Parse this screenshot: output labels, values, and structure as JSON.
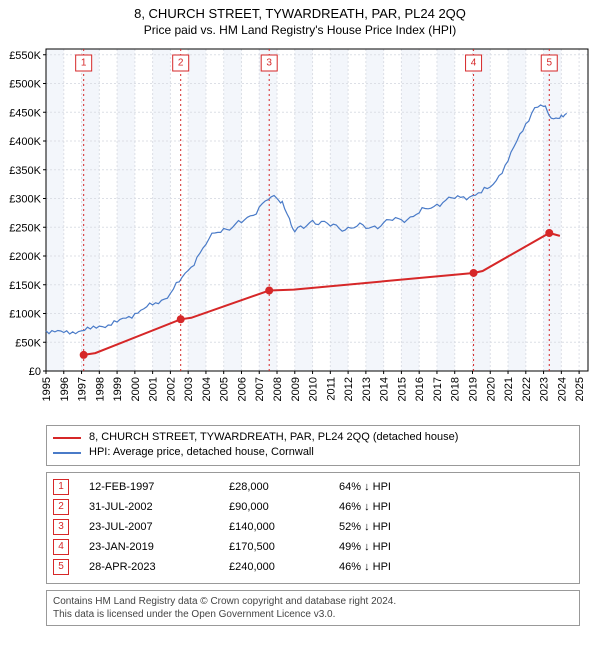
{
  "title_line1": "8, CHURCH STREET, TYWARDREATH, PAR, PL24 2QQ",
  "title_line2": "Price paid vs. HM Land Registry's House Price Index (HPI)",
  "chart": {
    "type": "line",
    "background_color": "#ffffff",
    "plot_bg_even": "#ffffff",
    "plot_bg_odd": "#f3f6fb",
    "grid_color": "#dcdfe6",
    "grid_dash": "2,2",
    "axis_color": "#000000",
    "x_years": [
      1995,
      1996,
      1997,
      1998,
      1999,
      2000,
      2001,
      2002,
      2003,
      2004,
      2005,
      2006,
      2007,
      2008,
      2009,
      2010,
      2011,
      2012,
      2013,
      2014,
      2015,
      2016,
      2017,
      2018,
      2019,
      2020,
      2021,
      2022,
      2023,
      2024,
      2025
    ],
    "y_ticks": [
      0,
      50000,
      100000,
      150000,
      200000,
      250000,
      300000,
      350000,
      400000,
      450000,
      500000,
      550000
    ],
    "y_tick_labels": [
      "£0",
      "£50K",
      "£100K",
      "£150K",
      "£200K",
      "£250K",
      "£300K",
      "£350K",
      "£400K",
      "£450K",
      "£500K",
      "£550K"
    ],
    "ylim": [
      0,
      560000
    ],
    "xlim": [
      1995,
      2025.5
    ],
    "tick_fontsize": 11,
    "hpi_series": {
      "color": "#4a7bc8",
      "width": 1.2,
      "points": [
        [
          1995.0,
          70000
        ],
        [
          1995.5,
          68000
        ],
        [
          1996.0,
          67000
        ],
        [
          1996.5,
          68000
        ],
        [
          1997.0,
          70000
        ],
        [
          1997.5,
          73000
        ],
        [
          1998.0,
          78000
        ],
        [
          1998.5,
          80000
        ],
        [
          1999.0,
          85000
        ],
        [
          1999.5,
          92000
        ],
        [
          2000.0,
          100000
        ],
        [
          2000.5,
          108000
        ],
        [
          2001.0,
          115000
        ],
        [
          2001.5,
          123000
        ],
        [
          2002.0,
          135000
        ],
        [
          2002.5,
          155000
        ],
        [
          2003.0,
          175000
        ],
        [
          2003.5,
          198000
        ],
        [
          2004.0,
          220000
        ],
        [
          2004.5,
          240000
        ],
        [
          2005.0,
          248000
        ],
        [
          2005.5,
          250000
        ],
        [
          2006.0,
          258000
        ],
        [
          2006.5,
          270000
        ],
        [
          2007.0,
          285000
        ],
        [
          2007.5,
          298000
        ],
        [
          2008.0,
          300000
        ],
        [
          2008.3,
          295000
        ],
        [
          2008.7,
          265000
        ],
        [
          2009.0,
          242000
        ],
        [
          2009.5,
          248000
        ],
        [
          2010.0,
          262000
        ],
        [
          2010.5,
          260000
        ],
        [
          2011.0,
          252000
        ],
        [
          2011.5,
          248000
        ],
        [
          2012.0,
          250000
        ],
        [
          2012.5,
          252000
        ],
        [
          2013.0,
          248000
        ],
        [
          2013.5,
          252000
        ],
        [
          2014.0,
          258000
        ],
        [
          2014.5,
          262000
        ],
        [
          2015.0,
          263000
        ],
        [
          2015.5,
          268000
        ],
        [
          2016.0,
          275000
        ],
        [
          2016.5,
          282000
        ],
        [
          2017.0,
          290000
        ],
        [
          2017.5,
          297000
        ],
        [
          2018.0,
          300000
        ],
        [
          2018.5,
          303000
        ],
        [
          2019.0,
          305000
        ],
        [
          2019.5,
          310000
        ],
        [
          2020.0,
          320000
        ],
        [
          2020.5,
          340000
        ],
        [
          2021.0,
          365000
        ],
        [
          2021.5,
          400000
        ],
        [
          2022.0,
          430000
        ],
        [
          2022.5,
          458000
        ],
        [
          2023.0,
          460000
        ],
        [
          2023.3,
          445000
        ],
        [
          2023.7,
          440000
        ],
        [
          2024.0,
          445000
        ],
        [
          2024.3,
          448000
        ]
      ]
    },
    "house_series": {
      "color": "#d62728",
      "width": 2,
      "points": [
        [
          1997.12,
          28000
        ],
        [
          2002.58,
          90000
        ],
        [
          2007.56,
          140000
        ],
        [
          2019.06,
          170500
        ],
        [
          2023.32,
          240000
        ]
      ]
    },
    "sale_markers": {
      "color": "#d62728",
      "box_border": "#d62728",
      "box_bg": "#ffffff",
      "dash_color": "#d62728",
      "dash": "2,3",
      "points": [
        {
          "n": "1",
          "year": 1997.12,
          "price": 28000
        },
        {
          "n": "2",
          "year": 2002.58,
          "price": 90000
        },
        {
          "n": "3",
          "year": 2007.56,
          "price": 140000
        },
        {
          "n": "4",
          "year": 2019.06,
          "price": 170500
        },
        {
          "n": "5",
          "year": 2023.32,
          "price": 240000
        }
      ]
    }
  },
  "legend": {
    "series1_color": "#d62728",
    "series1_label": "8, CHURCH STREET, TYWARDREATH, PAR, PL24 2QQ (detached house)",
    "series2_color": "#4a7bc8",
    "series2_label": "HPI: Average price, detached house, Cornwall"
  },
  "table": {
    "marker_border": "#d62728",
    "marker_text": "#d62728",
    "rows": [
      {
        "n": "1",
        "date": "12-FEB-1997",
        "price": "£28,000",
        "delta": "64% ↓ HPI"
      },
      {
        "n": "2",
        "date": "31-JUL-2002",
        "price": "£90,000",
        "delta": "46% ↓ HPI"
      },
      {
        "n": "3",
        "date": "23-JUL-2007",
        "price": "£140,000",
        "delta": "52% ↓ HPI"
      },
      {
        "n": "4",
        "date": "23-JAN-2019",
        "price": "£170,500",
        "delta": "49% ↓ HPI"
      },
      {
        "n": "5",
        "date": "28-APR-2023",
        "price": "£240,000",
        "delta": "46% ↓ HPI"
      }
    ]
  },
  "footer": {
    "line1": "Contains HM Land Registry data © Crown copyright and database right 2024.",
    "line2": "This data is licensed under the Open Government Licence v3.0."
  }
}
